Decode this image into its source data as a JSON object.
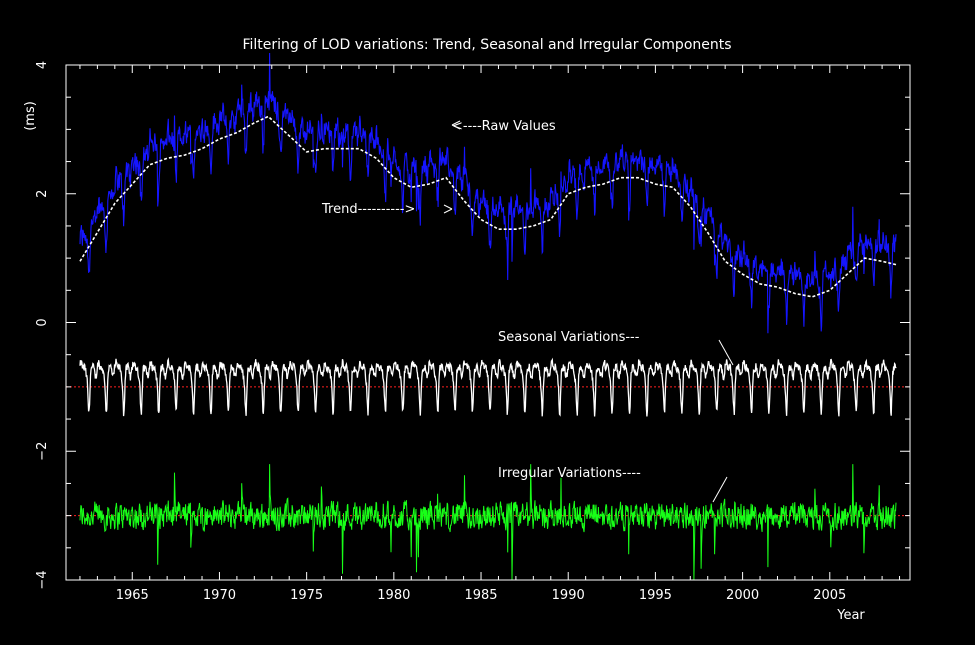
{
  "chart_data": {
    "type": "line",
    "title": "Filtering of LOD variations: Trend, Seasonal and Irregular Components",
    "xlabel": "Year",
    "ylabel": "(ms)",
    "xlim": [
      1961.2,
      2009.6
    ],
    "ylim": [
      -4,
      4
    ],
    "xticks": [
      1965,
      1970,
      1975,
      1980,
      1985,
      1990,
      1995,
      2000,
      2005
    ],
    "yticks": [
      4,
      2,
      0,
      -2,
      -4
    ],
    "grid": false,
    "background": "#000000",
    "baselines": [
      {
        "name": "seasonal-baseline",
        "y": -1,
        "color": "#ff2020"
      },
      {
        "name": "irregular-baseline",
        "y": -3,
        "color": "#ff2020"
      }
    ],
    "annotations": {
      "raw": "<----Raw Values",
      "trend": "Trend---------->",
      "seasonal": "Seasonal Variations---",
      "irregular": "Irregular Variations----"
    },
    "series": [
      {
        "key": "trend",
        "color": "#ffffff",
        "x": [
          1962.0,
          1963.0,
          1964.0,
          1965.0,
          1966.0,
          1967.0,
          1968.0,
          1969.0,
          1970.0,
          1971.0,
          1972.0,
          1972.8,
          1974.0,
          1975.0,
          1976.0,
          1977.0,
          1978.0,
          1979.0,
          1980.0,
          1981.0,
          1982.0,
          1983.0,
          1984.0,
          1985.0,
          1986.0,
          1987.0,
          1988.0,
          1989.0,
          1990.0,
          1991.0,
          1992.0,
          1993.0,
          1994.0,
          1995.0,
          1996.0,
          1997.0,
          1998.0,
          1999.0,
          2000.0,
          2001.0,
          2002.0,
          2003.0,
          2004.0,
          2005.0,
          2006.0,
          2007.0,
          2008.0,
          2008.8
        ],
        "y": [
          0.95,
          1.4,
          1.85,
          2.15,
          2.45,
          2.55,
          2.6,
          2.7,
          2.85,
          2.95,
          3.1,
          3.2,
          2.9,
          2.65,
          2.7,
          2.7,
          2.7,
          2.55,
          2.25,
          2.1,
          2.15,
          2.25,
          1.9,
          1.6,
          1.45,
          1.45,
          1.5,
          1.6,
          2.0,
          2.1,
          2.15,
          2.25,
          2.25,
          2.15,
          2.1,
          1.8,
          1.4,
          0.95,
          0.75,
          0.6,
          0.55,
          0.45,
          0.4,
          0.5,
          0.75,
          1.0,
          0.95,
          0.9
        ]
      },
      {
        "key": "raw",
        "color": "#1515ff",
        "description": "Raw LOD values: trend plus a seasonal cycle of about 1 ms amplitude plus irregular noise",
        "amplitude": 1.0,
        "x_range": [
          1962.0,
          2008.8
        ]
      },
      {
        "key": "seasonal",
        "color": "#ffffff",
        "baseline": -1,
        "range": [
          -1.65,
          -0.5
        ],
        "period_years": 1.0
      },
      {
        "key": "irregular",
        "color": "#18ff18",
        "baseline": -3,
        "range": [
          -4,
          -2.2
        ]
      }
    ]
  }
}
